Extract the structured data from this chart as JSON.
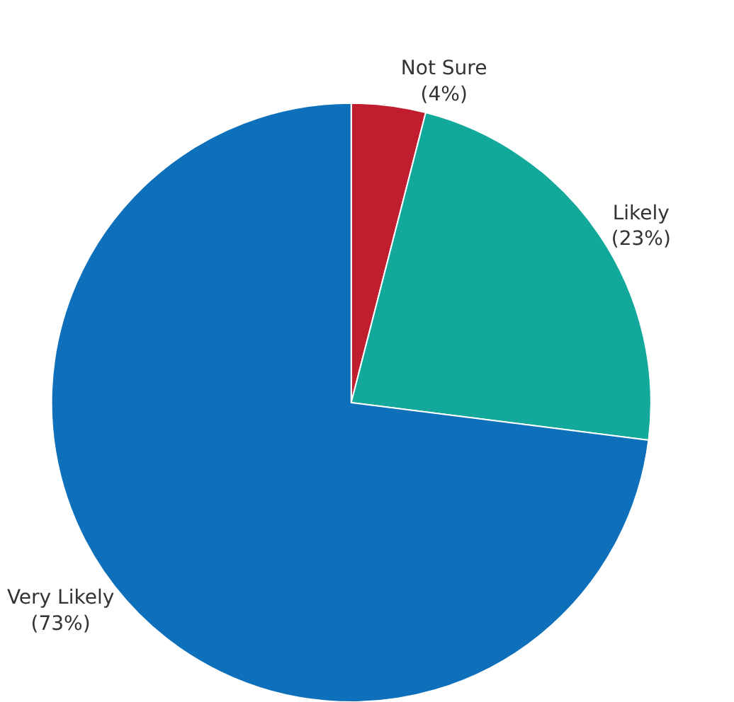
{
  "chart_data": {
    "type": "pie",
    "categories": [
      "Not Sure",
      "Likely",
      "Very Likely"
    ],
    "values": [
      4,
      23,
      73
    ],
    "value_labels": [
      "(4%)",
      "(23%)",
      "(73%)"
    ],
    "colors": [
      "#c01e2e",
      "#12a89a",
      "#0e70bb"
    ],
    "legend": false
  }
}
